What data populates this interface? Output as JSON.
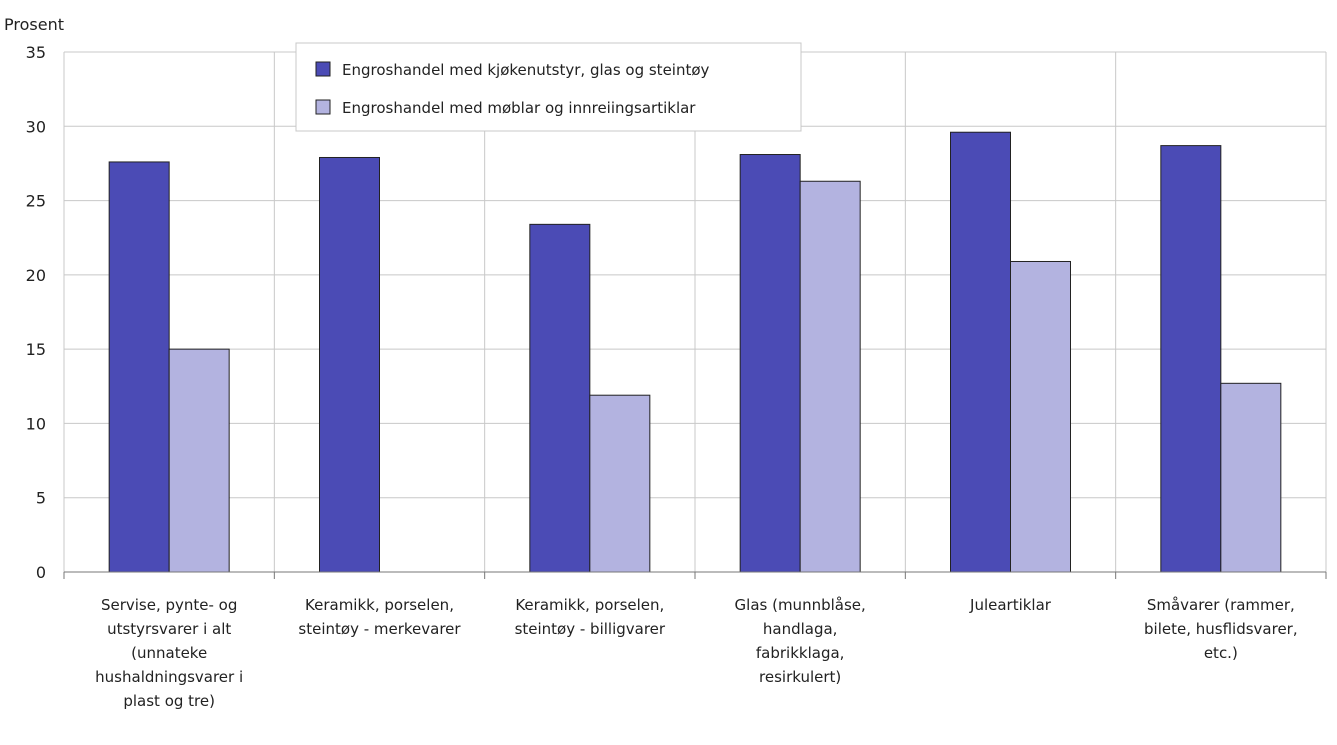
{
  "chart_data": {
    "type": "bar",
    "ylabel": "Prosent",
    "ylim": [
      0,
      35
    ],
    "yticks": [
      0,
      5,
      10,
      15,
      20,
      25,
      30,
      35
    ],
    "grid": true,
    "legend_position": "top",
    "categories": [
      [
        "Servise, pynte- og",
        "utstyrsvarer i alt",
        "(unnateke",
        "hushaldningsvarer i",
        "plast og tre)"
      ],
      [
        "Keramikk, porselen,",
        "steintøy - merkevarer"
      ],
      [
        "Keramikk, porselen,",
        "steintøy - billigvarer"
      ],
      [
        "Glas (munnblåse,",
        "handlaga,",
        "fabrikklaga,",
        "resirkulert)"
      ],
      [
        "Juleartiklar"
      ],
      [
        "Småvarer (rammer,",
        "bilete, husflidsvarer,",
        "etc.)"
      ]
    ],
    "series": [
      {
        "name": "Engroshandel med kjøkenutstyr, glas og steintøy",
        "color": "#4b4bb5",
        "values": [
          27.6,
          27.9,
          23.4,
          28.1,
          29.6,
          28.7
        ]
      },
      {
        "name": "Engroshandel med møblar og innreiingsartiklar",
        "color": "#b3b3e0",
        "values": [
          15.0,
          null,
          11.9,
          26.3,
          20.9,
          12.7
        ]
      }
    ]
  }
}
